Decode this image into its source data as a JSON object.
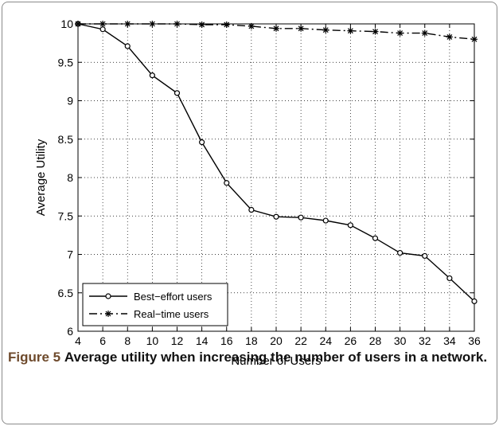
{
  "chart_data": {
    "type": "line",
    "xlabel": "Number of Users",
    "ylabel": "Average Utility",
    "xlim": [
      4,
      36
    ],
    "ylim": [
      6,
      10
    ],
    "x": [
      4,
      6,
      8,
      10,
      12,
      14,
      16,
      18,
      20,
      22,
      24,
      26,
      28,
      30,
      32,
      34,
      36
    ],
    "xticks": [
      "4",
      "6",
      "8",
      "10",
      "12",
      "14",
      "16",
      "18",
      "20",
      "22",
      "24",
      "26",
      "28",
      "30",
      "32",
      "34",
      "36"
    ],
    "yticks": [
      "6",
      "6.5",
      "7",
      "7.5",
      "8",
      "8.5",
      "9",
      "9.5",
      "10"
    ],
    "grid": true,
    "legend_position": "bottom-left",
    "series": [
      {
        "name": "Best−effort users",
        "style": "solid-circle",
        "values": [
          10,
          9.93,
          9.71,
          9.33,
          9.1,
          8.46,
          7.93,
          7.58,
          7.49,
          7.48,
          7.44,
          7.38,
          7.21,
          7.02,
          6.98,
          6.69,
          6.39
        ]
      },
      {
        "name": "Real−time users",
        "style": "dashdot-star",
        "values": [
          10,
          10,
          10,
          10,
          10,
          9.99,
          9.99,
          9.97,
          9.94,
          9.94,
          9.92,
          9.91,
          9.9,
          9.88,
          9.88,
          9.83,
          9.8
        ]
      }
    ]
  },
  "caption": {
    "label": "Figure 5",
    "text": "Average utility when increasing the number of users in a network."
  },
  "colors": {
    "line": "#000000",
    "grid": "#000000",
    "caption_label": "#6e4a2c"
  }
}
